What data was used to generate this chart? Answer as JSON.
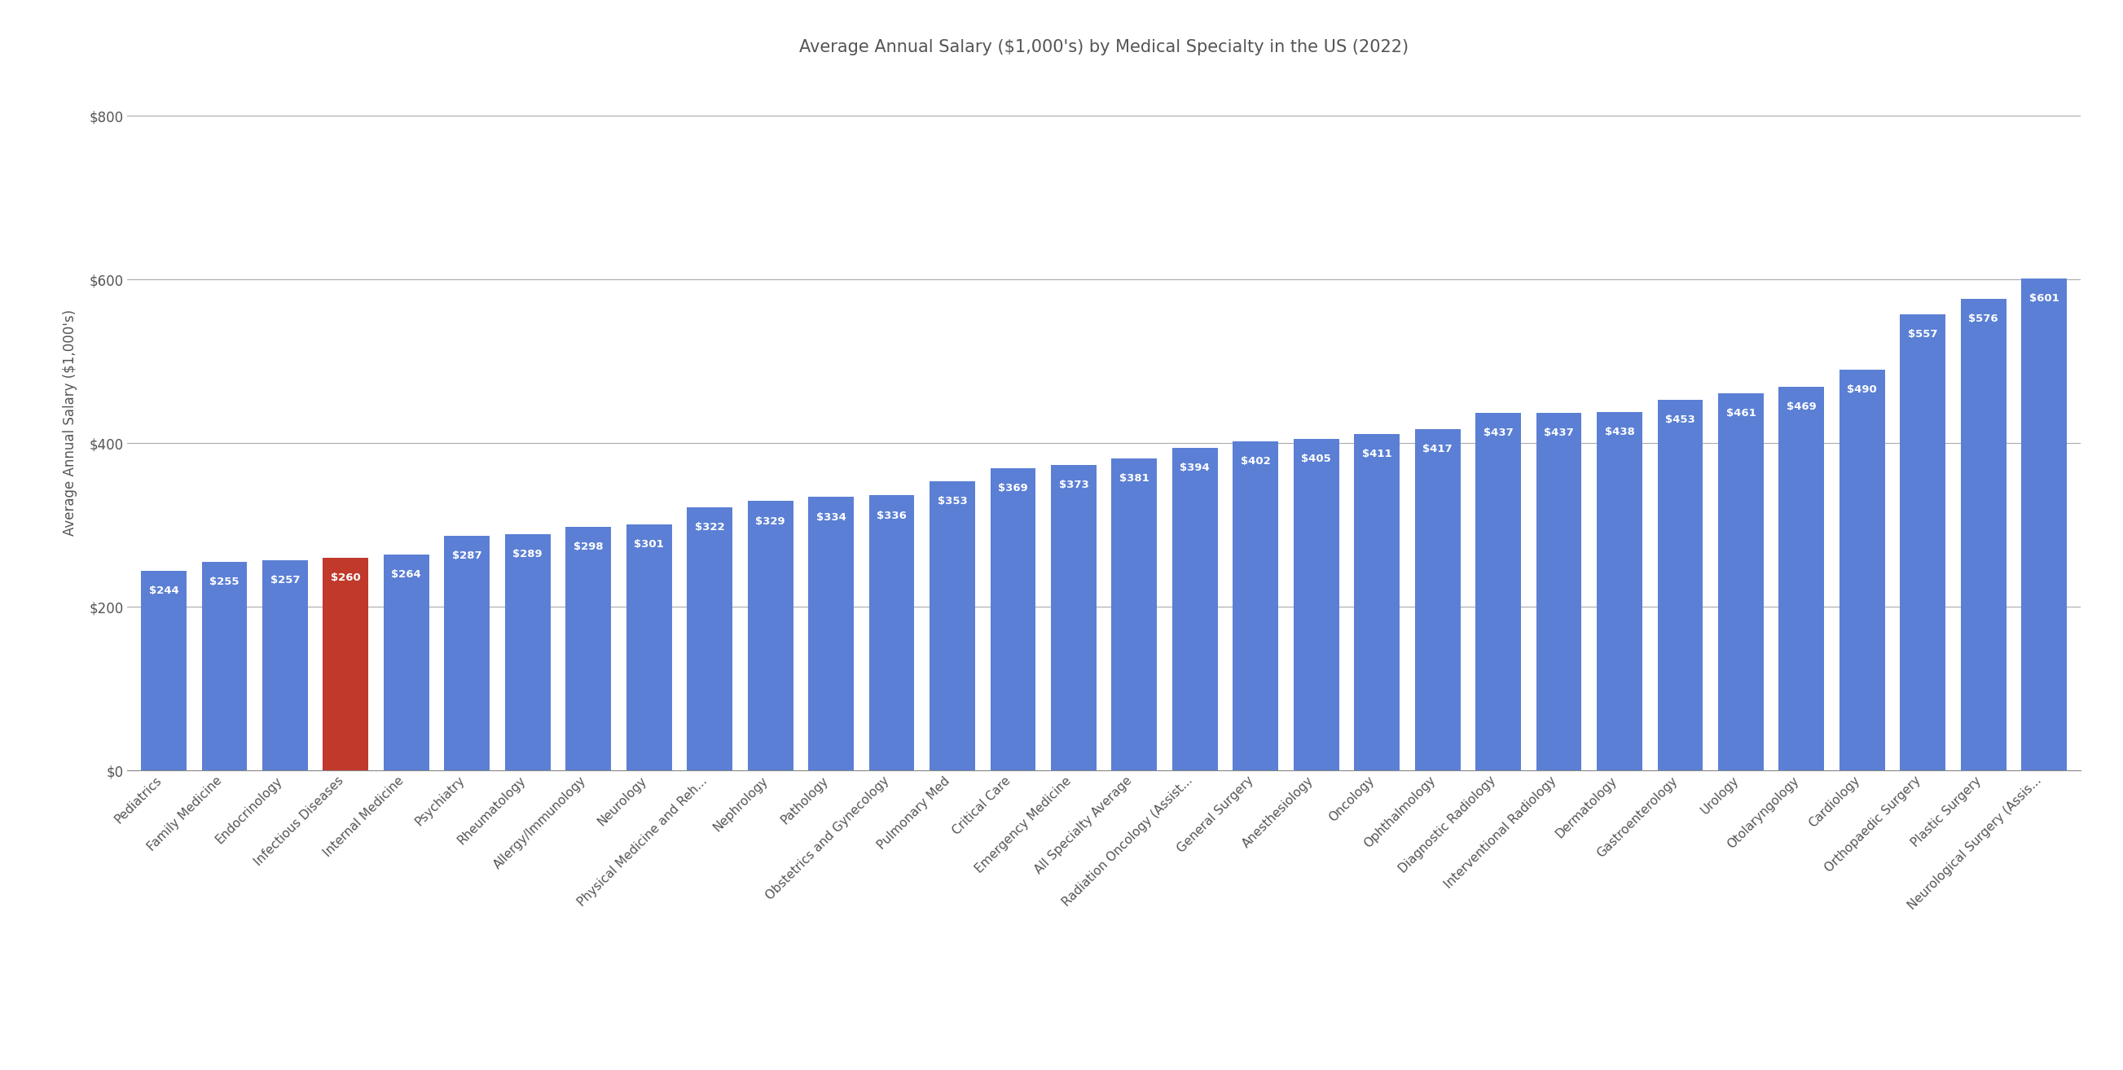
{
  "title": "Average Annual Salary ($1,000's) by Medical Specialty in the US (2022)",
  "ylabel": "Average Annual Salary ($1,000's)",
  "categories": [
    "Pediatrics",
    "Family Medicine",
    "Endocrinology",
    "Infectious Diseases",
    "Internal Medicine",
    "Psychiatry",
    "Rheumatology",
    "Allergy/Immunology",
    "Neurology",
    "Physical Medicine and Reh...",
    "Nephrology",
    "Pathology",
    "Obstetrics and Gynecology",
    "Pulmonary Med",
    "Critical Care",
    "Emergency Medicine",
    "All Specialty Average",
    "Radiation Oncology (Assist...",
    "General Surgery",
    "Anesthesiology",
    "Oncology",
    "Ophthalmology",
    "Diagnostic Radiology",
    "Interventional Radiology",
    "Dermatology",
    "Gastroenterology",
    "Urology",
    "Otolaryngology",
    "Cardiology",
    "Orthopaedic Surgery",
    "Plastic Surgery",
    "Neurological Surgery (Assis..."
  ],
  "values": [
    244,
    255,
    257,
    260,
    264,
    287,
    289,
    298,
    301,
    322,
    329,
    334,
    336,
    353,
    369,
    373,
    381,
    394,
    402,
    405,
    411,
    417,
    437,
    437,
    438,
    453,
    461,
    469,
    490,
    557,
    576,
    601
  ],
  "bar_colors": [
    "#5b7fd4",
    "#5b7fd4",
    "#5b7fd4",
    "#c0392b",
    "#5b7fd4",
    "#5b7fd4",
    "#5b7fd4",
    "#5b7fd4",
    "#5b7fd4",
    "#5b7fd4",
    "#5b7fd4",
    "#5b7fd4",
    "#5b7fd4",
    "#5b7fd4",
    "#5b7fd4",
    "#5b7fd4",
    "#5b7fd4",
    "#5b7fd4",
    "#5b7fd4",
    "#5b7fd4",
    "#5b7fd4",
    "#5b7fd4",
    "#5b7fd4",
    "#5b7fd4",
    "#5b7fd4",
    "#5b7fd4",
    "#5b7fd4",
    "#5b7fd4",
    "#5b7fd4",
    "#5b7fd4",
    "#5b7fd4",
    "#5b7fd4"
  ],
  "ylim": [
    0,
    850
  ],
  "yticks": [
    0,
    200,
    400,
    600,
    800
  ],
  "ytick_labels": [
    "$0",
    "$200",
    "$400",
    "$600",
    "$800"
  ],
  "background_color": "#ffffff",
  "title_fontsize": 15,
  "label_fontsize": 9.5,
  "axis_label_fontsize": 12,
  "tick_label_fontsize": 12,
  "xtick_fontsize": 11,
  "grid_color": "#aaaaaa",
  "grid_linewidth": 0.8,
  "bar_width": 0.75
}
